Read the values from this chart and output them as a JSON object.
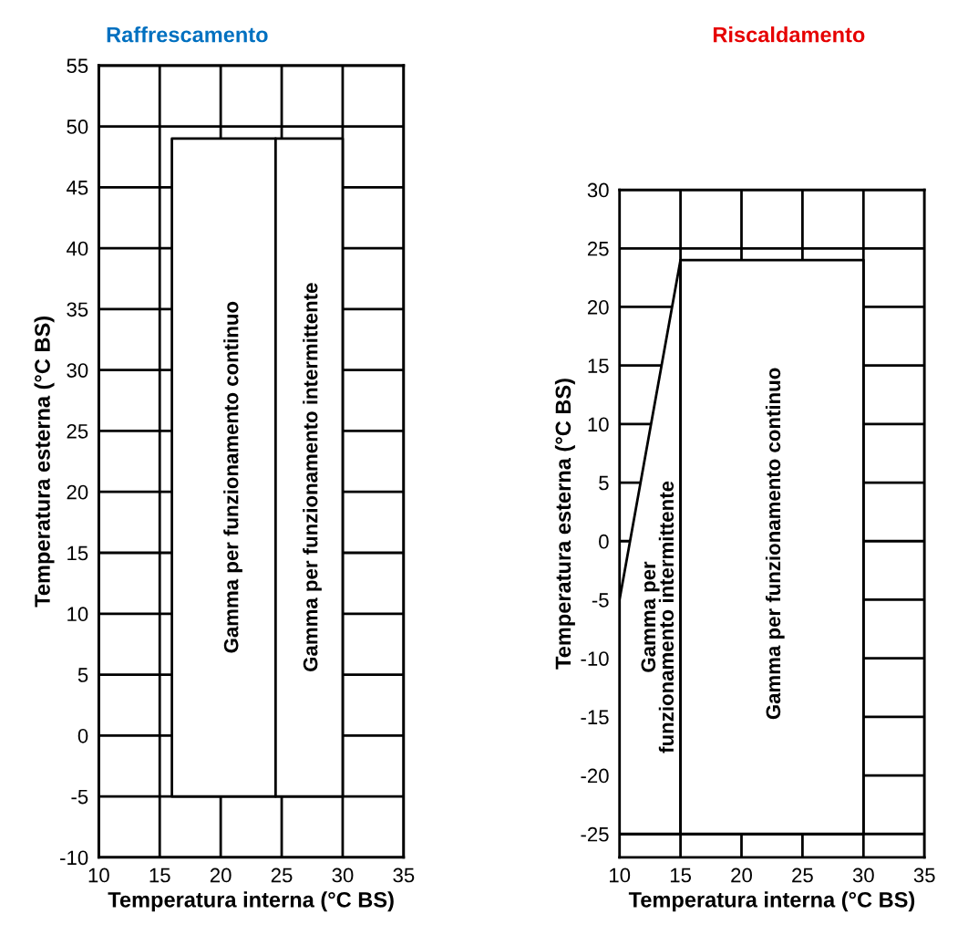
{
  "chart_data": [
    {
      "type": "area",
      "title": "Raffrescamento",
      "xlabel": "Temperatura interna (°C BS)",
      "ylabel": "Temperatura esterna (°C BS)",
      "xlim": [
        10,
        35
      ],
      "xticks": [
        10,
        15,
        20,
        25,
        30,
        35
      ],
      "ylim": [
        -10,
        55
      ],
      "yticks": [
        -10,
        -5,
        0,
        5,
        10,
        15,
        20,
        25,
        30,
        35,
        40,
        45,
        50,
        55
      ],
      "grid": true,
      "series": [
        {
          "color": "#ffffff",
          "x": [
            16,
            16,
            24.5,
            24.5,
            16
          ],
          "values": [
            -5,
            49,
            49,
            -5,
            -5
          ]
        },
        {
          "color": "#ffffff",
          "x": [
            24.5,
            24.5,
            30,
            30,
            24.5
          ],
          "values": [
            -5,
            49,
            49,
            -5,
            -5
          ]
        }
      ],
      "annotations": [
        "Gamma per funzionamento continuo",
        "Gamma per funzionamento intermittente"
      ]
    },
    {
      "type": "area",
      "title": "Riscaldamento",
      "xlabel": "Temperatura interna (°C BS)",
      "ylabel": "Temperatura esterna (°C BS)",
      "xlim": [
        10,
        35
      ],
      "xticks": [
        10,
        15,
        20,
        25,
        30,
        35
      ],
      "ylim": [
        -27,
        30
      ],
      "yticks": [
        -25,
        -20,
        -15,
        -10,
        -5,
        0,
        5,
        10,
        15,
        20,
        25,
        30
      ],
      "grid": true,
      "series": [
        {
          "color": "#ffffff",
          "x": [
            10,
            10,
            15,
            15,
            10
          ],
          "values": [
            -25,
            -5,
            24,
            -25,
            -25
          ]
        },
        {
          "color": "#ffffff",
          "x": [
            15,
            15,
            30,
            30,
            15
          ],
          "values": [
            -25,
            24,
            24,
            -25,
            -25
          ]
        }
      ],
      "annotations": [
        "Gamma per\nfunzionamento intermittente",
        "Gamma per funzionamento continuo"
      ]
    }
  ]
}
